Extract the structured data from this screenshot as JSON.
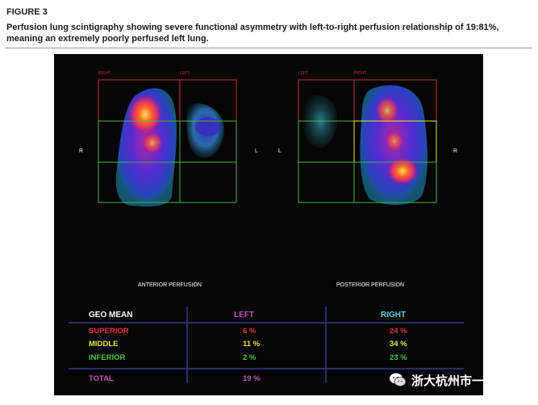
{
  "figure_label": "FIGURE 3",
  "caption": "Perfusion lung scintigraphy showing severe functional asymmetry with left-to-right perfusion relationship of 19:81%, meaning an extremely poorly perfused left lung.",
  "anterior": {
    "top_right": "RIGHT",
    "top_left": "LEFT",
    "side_left": "R",
    "side_right": "L",
    "caption": "ANTERIOR PERFUSION"
  },
  "posterior": {
    "top_left": "LEFT",
    "top_right": "RIGHT",
    "side_left": "L",
    "side_right": "R",
    "caption": "POSTERIOR PERFUSION"
  },
  "table": {
    "header": {
      "label": "GEO MEAN",
      "left": "LEFT",
      "right": "RIGHT"
    },
    "rows": [
      {
        "label": "SUPERIOR",
        "left": "6 %",
        "right": "24 %",
        "color": "#e8323c"
      },
      {
        "label": "MIDDLE",
        "left": "11 %",
        "right": "34 %",
        "color": "#e6e62e"
      },
      {
        "label": "INFERIOR",
        "left": "2 %",
        "right": "23 %",
        "color": "#48c83c"
      }
    ],
    "total": {
      "label": "TOTAL",
      "left": "19 %",
      "color": "#c04ec0"
    }
  },
  "colors": {
    "left_header": "#c04ec0",
    "right_header": "#5ad0e0",
    "geo_mean": "#ffffff",
    "superior_box": "#c8323c",
    "green_box": "#48b43c",
    "divider": "#3a3a8a"
  },
  "watermark": {
    "text": "浙大杭州市一重症",
    "icon": "wechat-icon"
  }
}
